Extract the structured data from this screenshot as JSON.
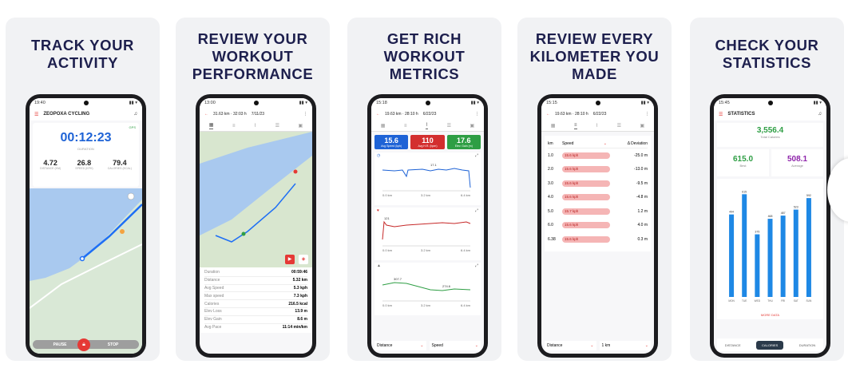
{
  "cards": [
    {
      "title": "TRACK YOUR\nACTIVITY"
    },
    {
      "title": "REVIEW YOUR\nWORKOUT\nPERFORMANCE"
    },
    {
      "title": "GET RICH\nWORKOUT\nMETRICS"
    },
    {
      "title": "REVIEW EVERY\nKILOMETER YOU\nMADE"
    },
    {
      "title": "CHECK YOUR\nSTATISTICS"
    }
  ],
  "s1": {
    "time": "19:40",
    "app_title": "ZEOPOXA CYCLING",
    "timer": "00:12:23",
    "timer_label": "DURATION",
    "stats": [
      {
        "value": "4.72",
        "label": "DISTANCE (KM)"
      },
      {
        "value": "26.8",
        "label": "SPEED (KPH)"
      },
      {
        "value": "79.4",
        "label": "CALORIES (KCAL)"
      }
    ],
    "pause": "PAUSE",
    "stop": "STOP",
    "gps": "GPS"
  },
  "s2": {
    "time": "13:00",
    "header": "31.63 km · 32:03 h",
    "date": "7/11/23",
    "rows": [
      {
        "label": "Duration",
        "value": "00:59:46"
      },
      {
        "label": "Distance",
        "value": "5.32 km"
      },
      {
        "label": "Avg Speed",
        "value": "5.3 kph"
      },
      {
        "label": "Max speed",
        "value": "7.3 kph"
      },
      {
        "label": "Calories",
        "value": "216.5 kcal"
      },
      {
        "label": "Elev Loss",
        "value": "13.9 m"
      },
      {
        "label": "Elev Gain",
        "value": "8.6 m"
      },
      {
        "label": "Avg Pace",
        "value": "11:14 min/km"
      }
    ]
  },
  "s3": {
    "time": "15:18",
    "header": "19.63 km · 28:10 h",
    "date": "6/22/23",
    "metrics": [
      {
        "value": "15.6",
        "label": "Avg Speed (kph)",
        "color": "#1e63d6"
      },
      {
        "value": "110",
        "label": "Avg H.R. (bpm)",
        "color": "#d32f2f"
      },
      {
        "value": "17.6",
        "label": "Elev. Gain (m)",
        "color": "#2e9e44"
      }
    ],
    "chart1_peak": "17.1",
    "chart2_peak": "121",
    "chart3_a": "307.7",
    "chart3_b": "274.6",
    "axis": [
      "0.0 km",
      "3.2 km",
      "6.4 km"
    ],
    "dd1": "Distance",
    "dd2": "Speed"
  },
  "s4": {
    "time": "15:15",
    "header": "19.63 km · 28:10 h",
    "date": "6/22/23",
    "col_km": "km",
    "col_metric": "Speed",
    "col_dev": "Δ Deviation",
    "rows": [
      {
        "km": "1.0",
        "speed": "15.6 kph",
        "dev": "-25.0 m"
      },
      {
        "km": "2.0",
        "speed": "15.6 kph",
        "dev": "-13.0 m"
      },
      {
        "km": "3.0",
        "speed": "15.6 kph",
        "dev": "-9.5 m"
      },
      {
        "km": "4.0",
        "speed": "15.6 kph",
        "dev": "-4.8 m"
      },
      {
        "km": "5.0",
        "speed": "15.7 kph",
        "dev": "1.2 m"
      },
      {
        "km": "6.0",
        "speed": "15.6 kph",
        "dev": "4.0 m"
      },
      {
        "km": "6.38",
        "speed": "15.6 kph",
        "dev": "0.3 m"
      }
    ],
    "dd1": "Distance",
    "dd2": "1 km"
  },
  "s5": {
    "time": "15:45",
    "title": "STATISTICS",
    "total": "3,556.4",
    "total_label": "Total Calories",
    "best": "615.0",
    "best_label": "Best",
    "avg": "508.1",
    "avg_label": "Average",
    "more": "MORE DATA",
    "tabs": [
      "DISTANCE",
      "CALORIES",
      "DURATION"
    ],
    "accent": "#1e88e5"
  },
  "chart_data": {
    "type": "bar",
    "categories": [
      "MON",
      "TUE",
      "WED",
      "THU",
      "FRI",
      "SAT",
      "SUN"
    ],
    "values": [
      494,
      615,
      375,
      468,
      487,
      523,
      592
    ],
    "ylim": [
      0,
      650
    ]
  }
}
